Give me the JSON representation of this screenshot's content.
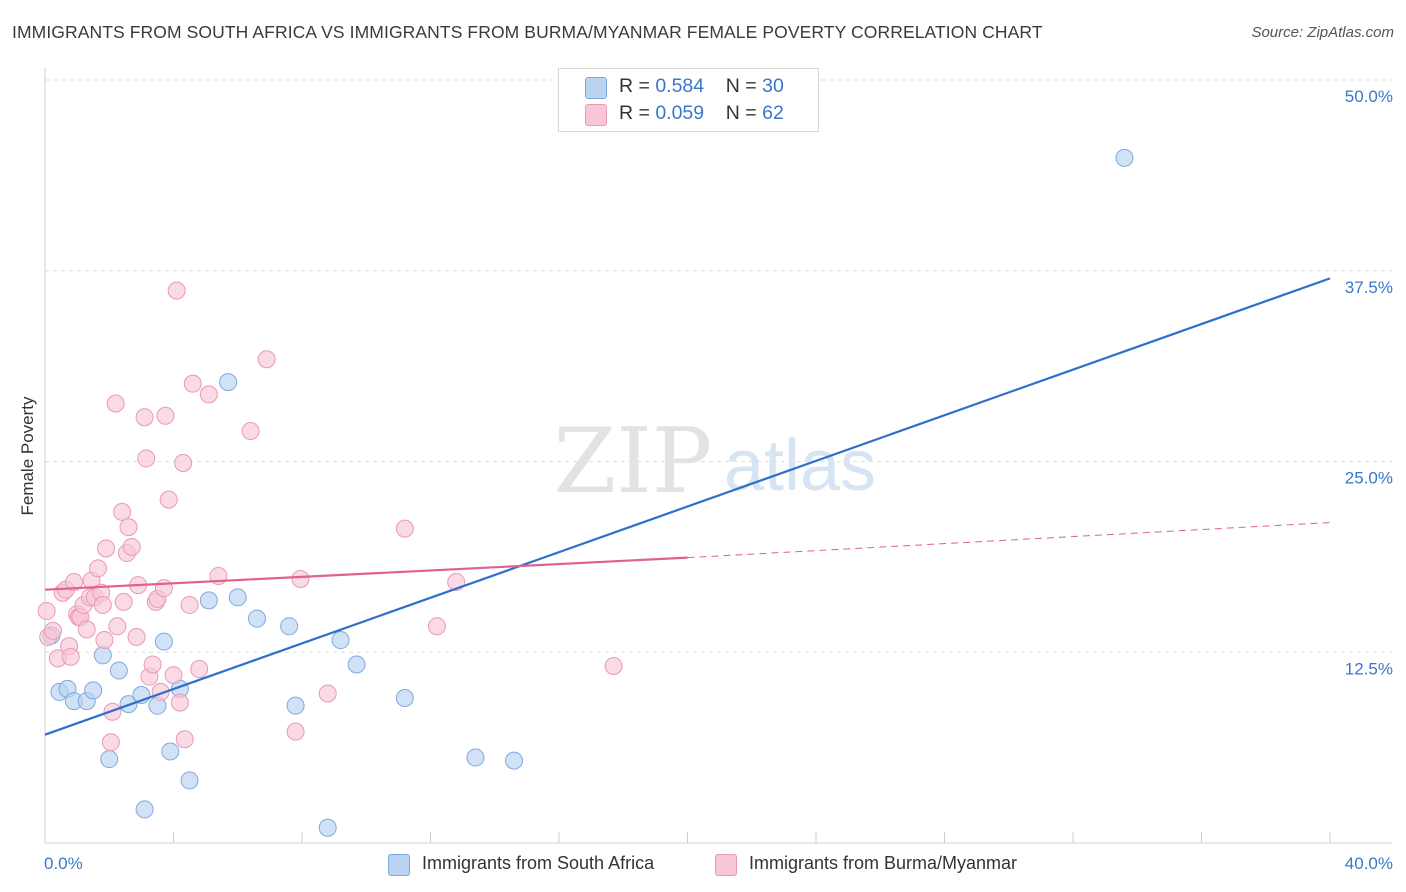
{
  "title": "IMMIGRANTS FROM SOUTH AFRICA VS IMMIGRANTS FROM BURMA/MYANMAR FEMALE POVERTY CORRELATION CHART",
  "source": "Source: ZipAtlas.com",
  "watermark": {
    "zip": "ZIP",
    "atlas": "atlas"
  },
  "legend_top": [
    {
      "r_label": "R = ",
      "r_value": "0.584",
      "n_label": "N = ",
      "n_value": "30"
    },
    {
      "r_label": "R = ",
      "r_value": "0.059",
      "n_label": "N = ",
      "n_value": "62"
    }
  ],
  "colors": {
    "blue_fill": "#b9d3f1",
    "blue_stroke": "#7fa9dc",
    "blue_line": "#2f6fcb",
    "pink_fill": "#f8c6d6",
    "pink_stroke": "#e99ab3",
    "pink_line": "#e0608e",
    "grid": "#dedede",
    "axis_text": "#3a77c9"
  },
  "chart_data": {
    "type": "scatter",
    "title": "IMMIGRANTS FROM SOUTH AFRICA VS IMMIGRANTS FROM BURMA/MYANMAR FEMALE POVERTY CORRELATION CHART",
    "xlabel": "",
    "ylabel": "Female Poverty",
    "xlim": [
      0,
      40
    ],
    "ylim": [
      0,
      50
    ],
    "x_tick_labels": [
      "0.0%",
      "40.0%"
    ],
    "y_ticks": [
      12.5,
      25.0,
      37.5,
      50.0
    ],
    "y_tick_labels": [
      "12.5%",
      "25.0%",
      "37.5%",
      "50.0%"
    ],
    "grid": true,
    "legend_position": "top-center",
    "series": [
      {
        "name": "Immigrants from South Africa",
        "points": [
          [
            0.2,
            13.6
          ],
          [
            0.45,
            9.9
          ],
          [
            0.7,
            10.1
          ],
          [
            0.9,
            9.3
          ],
          [
            1.3,
            9.3
          ],
          [
            1.5,
            10.0
          ],
          [
            1.8,
            12.3
          ],
          [
            2.0,
            5.5
          ],
          [
            2.3,
            11.3
          ],
          [
            2.6,
            9.1
          ],
          [
            3.0,
            9.7
          ],
          [
            3.1,
            2.2
          ],
          [
            3.5,
            9.0
          ],
          [
            3.7,
            13.2
          ],
          [
            3.9,
            6.0
          ],
          [
            4.2,
            10.1
          ],
          [
            4.5,
            4.1
          ],
          [
            5.1,
            15.9
          ],
          [
            5.7,
            30.2
          ],
          [
            6.0,
            16.1
          ],
          [
            6.6,
            14.7
          ],
          [
            7.6,
            14.2
          ],
          [
            7.8,
            9.0
          ],
          [
            8.8,
            1.0
          ],
          [
            9.2,
            13.3
          ],
          [
            9.7,
            11.7
          ],
          [
            11.2,
            9.5
          ],
          [
            13.4,
            5.6
          ],
          [
            14.6,
            5.4
          ],
          [
            33.6,
            44.9
          ]
        ]
      },
      {
        "name": "Immigrants from Burma/Myanmar",
        "points": [
          [
            0.05,
            15.2
          ],
          [
            0.1,
            13.5
          ],
          [
            0.25,
            13.9
          ],
          [
            0.4,
            12.1
          ],
          [
            0.55,
            16.4
          ],
          [
            0.65,
            16.6
          ],
          [
            0.75,
            12.9
          ],
          [
            0.8,
            12.2
          ],
          [
            0.9,
            17.1
          ],
          [
            1.0,
            15.0
          ],
          [
            1.05,
            14.8
          ],
          [
            1.1,
            14.8
          ],
          [
            1.2,
            15.6
          ],
          [
            1.3,
            14.0
          ],
          [
            1.4,
            16.1
          ],
          [
            1.45,
            17.2
          ],
          [
            1.55,
            16.1
          ],
          [
            1.65,
            18.0
          ],
          [
            1.75,
            16.4
          ],
          [
            1.8,
            15.6
          ],
          [
            1.85,
            13.3
          ],
          [
            1.9,
            19.3
          ],
          [
            2.1,
            8.6
          ],
          [
            2.05,
            6.6
          ],
          [
            2.2,
            28.8
          ],
          [
            2.25,
            14.2
          ],
          [
            2.4,
            21.7
          ],
          [
            2.45,
            15.8
          ],
          [
            2.55,
            19.0
          ],
          [
            2.6,
            20.7
          ],
          [
            2.7,
            19.4
          ],
          [
            2.85,
            13.5
          ],
          [
            2.9,
            16.9
          ],
          [
            3.1,
            27.9
          ],
          [
            3.15,
            25.2
          ],
          [
            3.25,
            10.9
          ],
          [
            3.35,
            11.7
          ],
          [
            3.45,
            15.8
          ],
          [
            3.5,
            16.0
          ],
          [
            3.6,
            9.9
          ],
          [
            3.7,
            16.7
          ],
          [
            3.75,
            28.0
          ],
          [
            3.85,
            22.5
          ],
          [
            4.0,
            11.0
          ],
          [
            4.1,
            36.2
          ],
          [
            4.2,
            9.2
          ],
          [
            4.3,
            24.9
          ],
          [
            4.35,
            6.8
          ],
          [
            4.5,
            15.6
          ],
          [
            4.6,
            30.1
          ],
          [
            4.8,
            11.4
          ],
          [
            5.1,
            29.4
          ],
          [
            5.4,
            17.5
          ],
          [
            6.4,
            27.0
          ],
          [
            6.9,
            31.7
          ],
          [
            7.8,
            7.3
          ],
          [
            7.95,
            17.3
          ],
          [
            8.8,
            9.8
          ],
          [
            11.2,
            20.6
          ],
          [
            12.2,
            14.2
          ],
          [
            12.8,
            17.1
          ],
          [
            17.7,
            11.6
          ]
        ]
      }
    ],
    "trend_lines": [
      {
        "series": "Immigrants from South Africa",
        "x": [
          0,
          40
        ],
        "y": [
          7.1,
          37.0
        ],
        "style": "solid"
      },
      {
        "series": "Immigrants from Burma/Myanmar",
        "x": [
          0,
          20
        ],
        "y": [
          16.6,
          18.7
        ],
        "style": "solid"
      },
      {
        "series": "Immigrants from Burma/Myanmar",
        "x": [
          20,
          40
        ],
        "y": [
          18.7,
          21.0
        ],
        "style": "dashed"
      }
    ]
  }
}
